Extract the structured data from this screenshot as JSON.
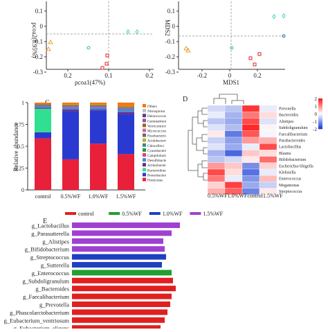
{
  "pcoa": {
    "ylabel": "pcoa2(8.95%)",
    "xlabel": "pcoa1(47%)",
    "yticks": [
      "0.1",
      "0",
      "-0.1",
      "-0.2",
      "-0.3"
    ],
    "xticks": [
      "0.2",
      "0.1",
      "0.2"
    ]
  },
  "mds": {
    "ylabel": "MDS2",
    "xlabel": "MDS1",
    "yticks": [
      "0.1",
      "0",
      "-0.1",
      "-0.2",
      "-0.3"
    ],
    "xticks": [
      "-0.2",
      "0",
      "0.2"
    ]
  },
  "panel_c": {
    "label": "C",
    "ylabel": "Relative abundance",
    "yticks": [
      "1",
      "0.75",
      "0.5",
      "0.25",
      "0"
    ],
    "legend": [
      "Others",
      "Nitrospirota",
      "Deinococcota",
      "Gemmatimonadota",
      "Verrucomicrobiota",
      "Myxococcota",
      "Fusobacteriota",
      "Acidobacteriota",
      "Chloroflexi",
      "Cyanobacteria",
      "Campilobacterota",
      "Desulfobacterota",
      "Actinobacteriota",
      "Bacteroidota",
      "Proteobacteria",
      "Firmicutes"
    ],
    "colors": [
      "#f07a1a",
      "#c0c0c0",
      "#5a3a8c",
      "#8a5aa0",
      "#a06020",
      "#d06aa0",
      "#6a6a6a",
      "#b8b030",
      "#3a8a8a",
      "#2a9a3a",
      "#e03a8a",
      "#4a8ad0",
      "#6a2a8a",
      "#30e090",
      "#2a3ad0",
      "#e8203a"
    ]
  },
  "chart_data": {
    "type": "bar",
    "stacked": true,
    "categories": [
      "control",
      "0.5%WF",
      "1.0%WF",
      "1.5%WF"
    ],
    "series": [
      {
        "name": "Firmicutes",
        "values": [
          0.59,
          0.35,
          0.53,
          0.41
        ]
      },
      {
        "name": "Proteobacteria",
        "values": [
          0.07,
          0.55,
          0.38,
          0.46
        ]
      },
      {
        "name": "Bacteroidota",
        "values": [
          0.27,
          0.0,
          0.0,
          0.0
        ]
      },
      {
        "name": "Actinobacteriota",
        "values": [
          0.01,
          0.02,
          0.01,
          0.02
        ]
      },
      {
        "name": "Desulfobacterota",
        "values": [
          0.02,
          0.03,
          0.03,
          0.04
        ]
      },
      {
        "name": "Campilobacterota",
        "values": [
          0.01,
          0.01,
          0.01,
          0.01
        ]
      },
      {
        "name": "Cyanobacteria",
        "values": [
          0.01,
          0.01,
          0.01,
          0.01
        ]
      },
      {
        "name": "Others",
        "values": [
          0.02,
          0.03,
          0.03,
          0.05
        ]
      }
    ],
    "ylim": [
      0,
      1
    ],
    "ylabel": "Relative abundance"
  },
  "panel_d": {
    "label": "D",
    "scale": [
      "2",
      "1",
      "0",
      "-1",
      "-2"
    ],
    "genera": [
      "Prevotella",
      "Bacteroides",
      "Alistipes",
      "Subdoligranulum",
      "Faecalibacterium",
      "Parabacteroides",
      "Lactobacillus",
      "Blautia",
      "Bifidobacterium",
      "Escherichia-Shigella",
      "Klebsiella",
      "Enterococcus",
      "Megamonas",
      "Streptococcus"
    ],
    "xlabels": "0.5%WF1.0%WFcontrol1.5%WF",
    "values": [
      [
        -0.4,
        -0.6,
        1.8,
        -0.2
      ],
      [
        -0.2,
        -0.8,
        1.2,
        0.3
      ],
      [
        -0.6,
        -0.9,
        1.6,
        -0.3
      ],
      [
        -0.3,
        -0.7,
        1.9,
        0.1
      ],
      [
        0.2,
        -1.4,
        1.5,
        -0.1
      ],
      [
        -0.5,
        -1.0,
        0.9,
        0.7
      ],
      [
        -0.3,
        -0.9,
        -0.2,
        1.6
      ],
      [
        -0.8,
        -1.6,
        0.5,
        0.3
      ],
      [
        -0.6,
        -0.4,
        0.2,
        1.3
      ],
      [
        0.9,
        0.5,
        -1.2,
        0.4
      ],
      [
        1.6,
        0.3,
        -1.5,
        -0.2
      ],
      [
        1.2,
        -0.2,
        -1.1,
        0.6
      ],
      [
        0.4,
        1.7,
        -0.9,
        -0.5
      ],
      [
        0.7,
        1.4,
        -1.3,
        0.2
      ]
    ]
  },
  "panel_e": {
    "label": "E",
    "legend": [
      {
        "label": "control",
        "color": "#e02020"
      },
      {
        "label": "0.5%WF",
        "color": "#20a030"
      },
      {
        "label": "1.0%WF",
        "color": "#2040c0"
      },
      {
        "label": "1.5%WF",
        "color": "#a040d0"
      }
    ],
    "bars": [
      {
        "taxon": "g_Lactobacillus",
        "group": 3,
        "value": 3.9
      },
      {
        "taxon": "g_Parasutterella",
        "group": 3,
        "value": 3.6
      },
      {
        "taxon": "g_Alistipes",
        "group": 3,
        "value": 3.3
      },
      {
        "taxon": "g_Bifidobacterium",
        "group": 3,
        "value": 3.35
      },
      {
        "taxon": "g_Streptococcus",
        "group": 2,
        "value": 3.4
      },
      {
        "taxon": "g_Sutterella",
        "group": 2,
        "value": 3.25
      },
      {
        "taxon": "g_Enterococcus",
        "group": 1,
        "value": 3.6
      },
      {
        "taxon": "g_Subdoligranulum",
        "group": 0,
        "value": 3.65
      },
      {
        "taxon": "g_Bacteroides",
        "group": 0,
        "value": 3.75
      },
      {
        "taxon": "g_Faecalibacterium",
        "group": 0,
        "value": 3.6
      },
      {
        "taxon": "g_Prevotella",
        "group": 0,
        "value": 3.55
      },
      {
        "taxon": "g_Phascolarctobacterium",
        "group": 0,
        "value": 3.45
      },
      {
        "taxon": "g_Eubacterium_ventriosum",
        "group": 0,
        "value": 3.35
      },
      {
        "taxon": "g_Eubacterium_eligens",
        "group": 0,
        "value": 3.2
      }
    ]
  }
}
